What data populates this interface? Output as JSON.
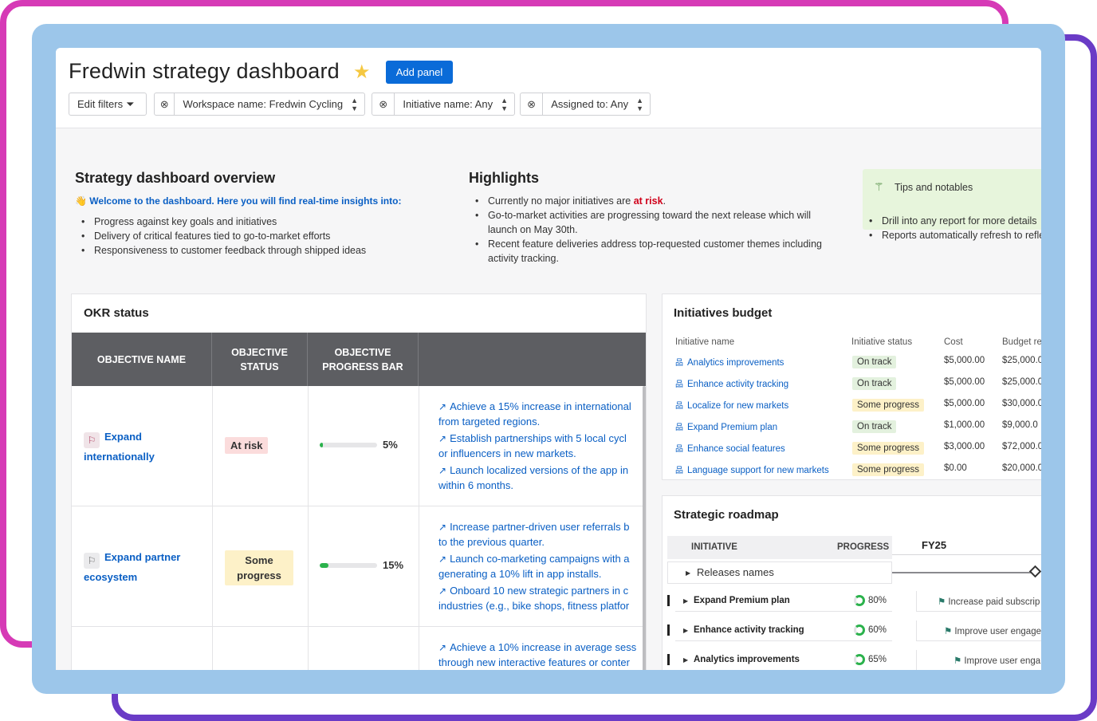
{
  "header": {
    "title": "Fredwin strategy dashboard",
    "add_panel": "Add panel",
    "filters": {
      "edit": "Edit filters",
      "workspace": "Workspace name: Fredwin Cycling",
      "initiative": "Initiative name: Any",
      "assigned": "Assigned to: Any"
    }
  },
  "overview": {
    "title": "Strategy dashboard overview",
    "welcome": "Welcome to the dashboard. Here you will find real-time insights into:",
    "items": [
      "Progress against key goals and initiatives",
      "Delivery of critical features tied to go-to-market efforts",
      "Responsiveness to customer feedback through shipped ideas"
    ]
  },
  "highlights": {
    "title": "Highlights",
    "item1_prefix": "Currently no major initiatives are ",
    "item1_emph": "at risk",
    "item1_suffix": ".",
    "item2_line1": "Go-to-market activities are progressing toward the next release which will",
    "item2_line2": "launch on May 30th.",
    "item3_line1": "Recent feature deliveries address top-requested customer themes including",
    "item3_line2": "activity tracking."
  },
  "tips": {
    "title": "Tips and notables",
    "items": [
      "Drill into any report for more details",
      "Reports automatically refresh to reflect"
    ]
  },
  "okr": {
    "title": "OKR status",
    "columns": {
      "name_line1": "OBJECTIVE NAME",
      "status_line1": "OBJECTIVE",
      "status_line2": "STATUS",
      "progress_line1": "OBJECTIVE",
      "progress_line2": "PROGRESS BAR"
    },
    "rows": [
      {
        "name_line1": "Expand",
        "name_line2": "internationally",
        "status": "At risk",
        "progress_pct": 5,
        "progress_label": "5%",
        "krs": [
          [
            "Achieve a 15% increase in international",
            "from targeted regions."
          ],
          [
            "Establish partnerships with 5 local cycl",
            "or influencers in new markets."
          ],
          [
            "Launch localized versions of the app in",
            "within 6 months."
          ]
        ]
      },
      {
        "name_line1": "Expand partner",
        "name_line2": "ecosystem",
        "status_line1": "Some",
        "status_line2": "progress",
        "progress_pct": 15,
        "progress_label": "15%",
        "krs": [
          [
            "Increase partner-driven user referrals b",
            "to the previous quarter."
          ],
          [
            "Launch co-marketing campaigns with a",
            "generating a 10% lift in app installs."
          ],
          [
            "Onboard 10 new strategic partners in c",
            "industries (e.g., bike shops, fitness platfor"
          ]
        ]
      },
      {
        "krs": [
          [
            "Achieve a 10% increase in average sess",
            "through new interactive features or conter"
          ]
        ]
      }
    ]
  },
  "budget": {
    "title": "Initiatives budget",
    "columns": {
      "name": "Initiative name",
      "status": "Initiative status",
      "cost": "Cost",
      "budget": "Budget re"
    },
    "rows": [
      {
        "name": "Analytics improvements",
        "status": "On track",
        "cost": "$5,000.00",
        "budget": "$25,000.0"
      },
      {
        "name": "Enhance activity tracking",
        "status": "On track",
        "cost": "$5,000.00",
        "budget": "$25,000.0"
      },
      {
        "name": "Localize for new markets",
        "status": "Some progress",
        "cost": "$5,000.00",
        "budget": "$30,000.0"
      },
      {
        "name": "Expand Premium plan",
        "status": "On track",
        "cost": "$1,000.00",
        "budget": "$9,000.0"
      },
      {
        "name": "Enhance social features",
        "status": "Some progress",
        "cost": "$3,000.00",
        "budget": "$72,000.0"
      },
      {
        "name": "Language support for new markets",
        "status": "Some progress",
        "cost": "$0.00",
        "budget": "$20,000.0"
      }
    ]
  },
  "roadmap": {
    "title": "Strategic roadmap",
    "col_initiative": "INITIATIVE",
    "col_progress": "PROGRESS",
    "period": "FY25",
    "release_label": "Releases names",
    "rows": [
      {
        "name": "Expand Premium plan",
        "progress": "80%",
        "goal": "Increase paid subscrip"
      },
      {
        "name": "Enhance activity tracking",
        "progress": "60%",
        "goal": "Improve user engage"
      },
      {
        "name": "Analytics improvements",
        "progress": "65%",
        "goal": "Improve user enga"
      }
    ]
  },
  "colors": {
    "accent": "#0a6bd8",
    "link": "#0a5fc4",
    "risk": "#fbdcdc",
    "some_progress": "#fdf1c8",
    "on_track": "#e3f1de",
    "progress_fill": "#2bb24c"
  },
  "icons": {
    "star": "star-icon",
    "filter": "filter-icon",
    "clear": "clear-circle-icon",
    "flag": "flag-icon",
    "trend": "trend-up-icon",
    "hierarchy": "hierarchy-icon",
    "wand": "magic-wand-icon"
  }
}
